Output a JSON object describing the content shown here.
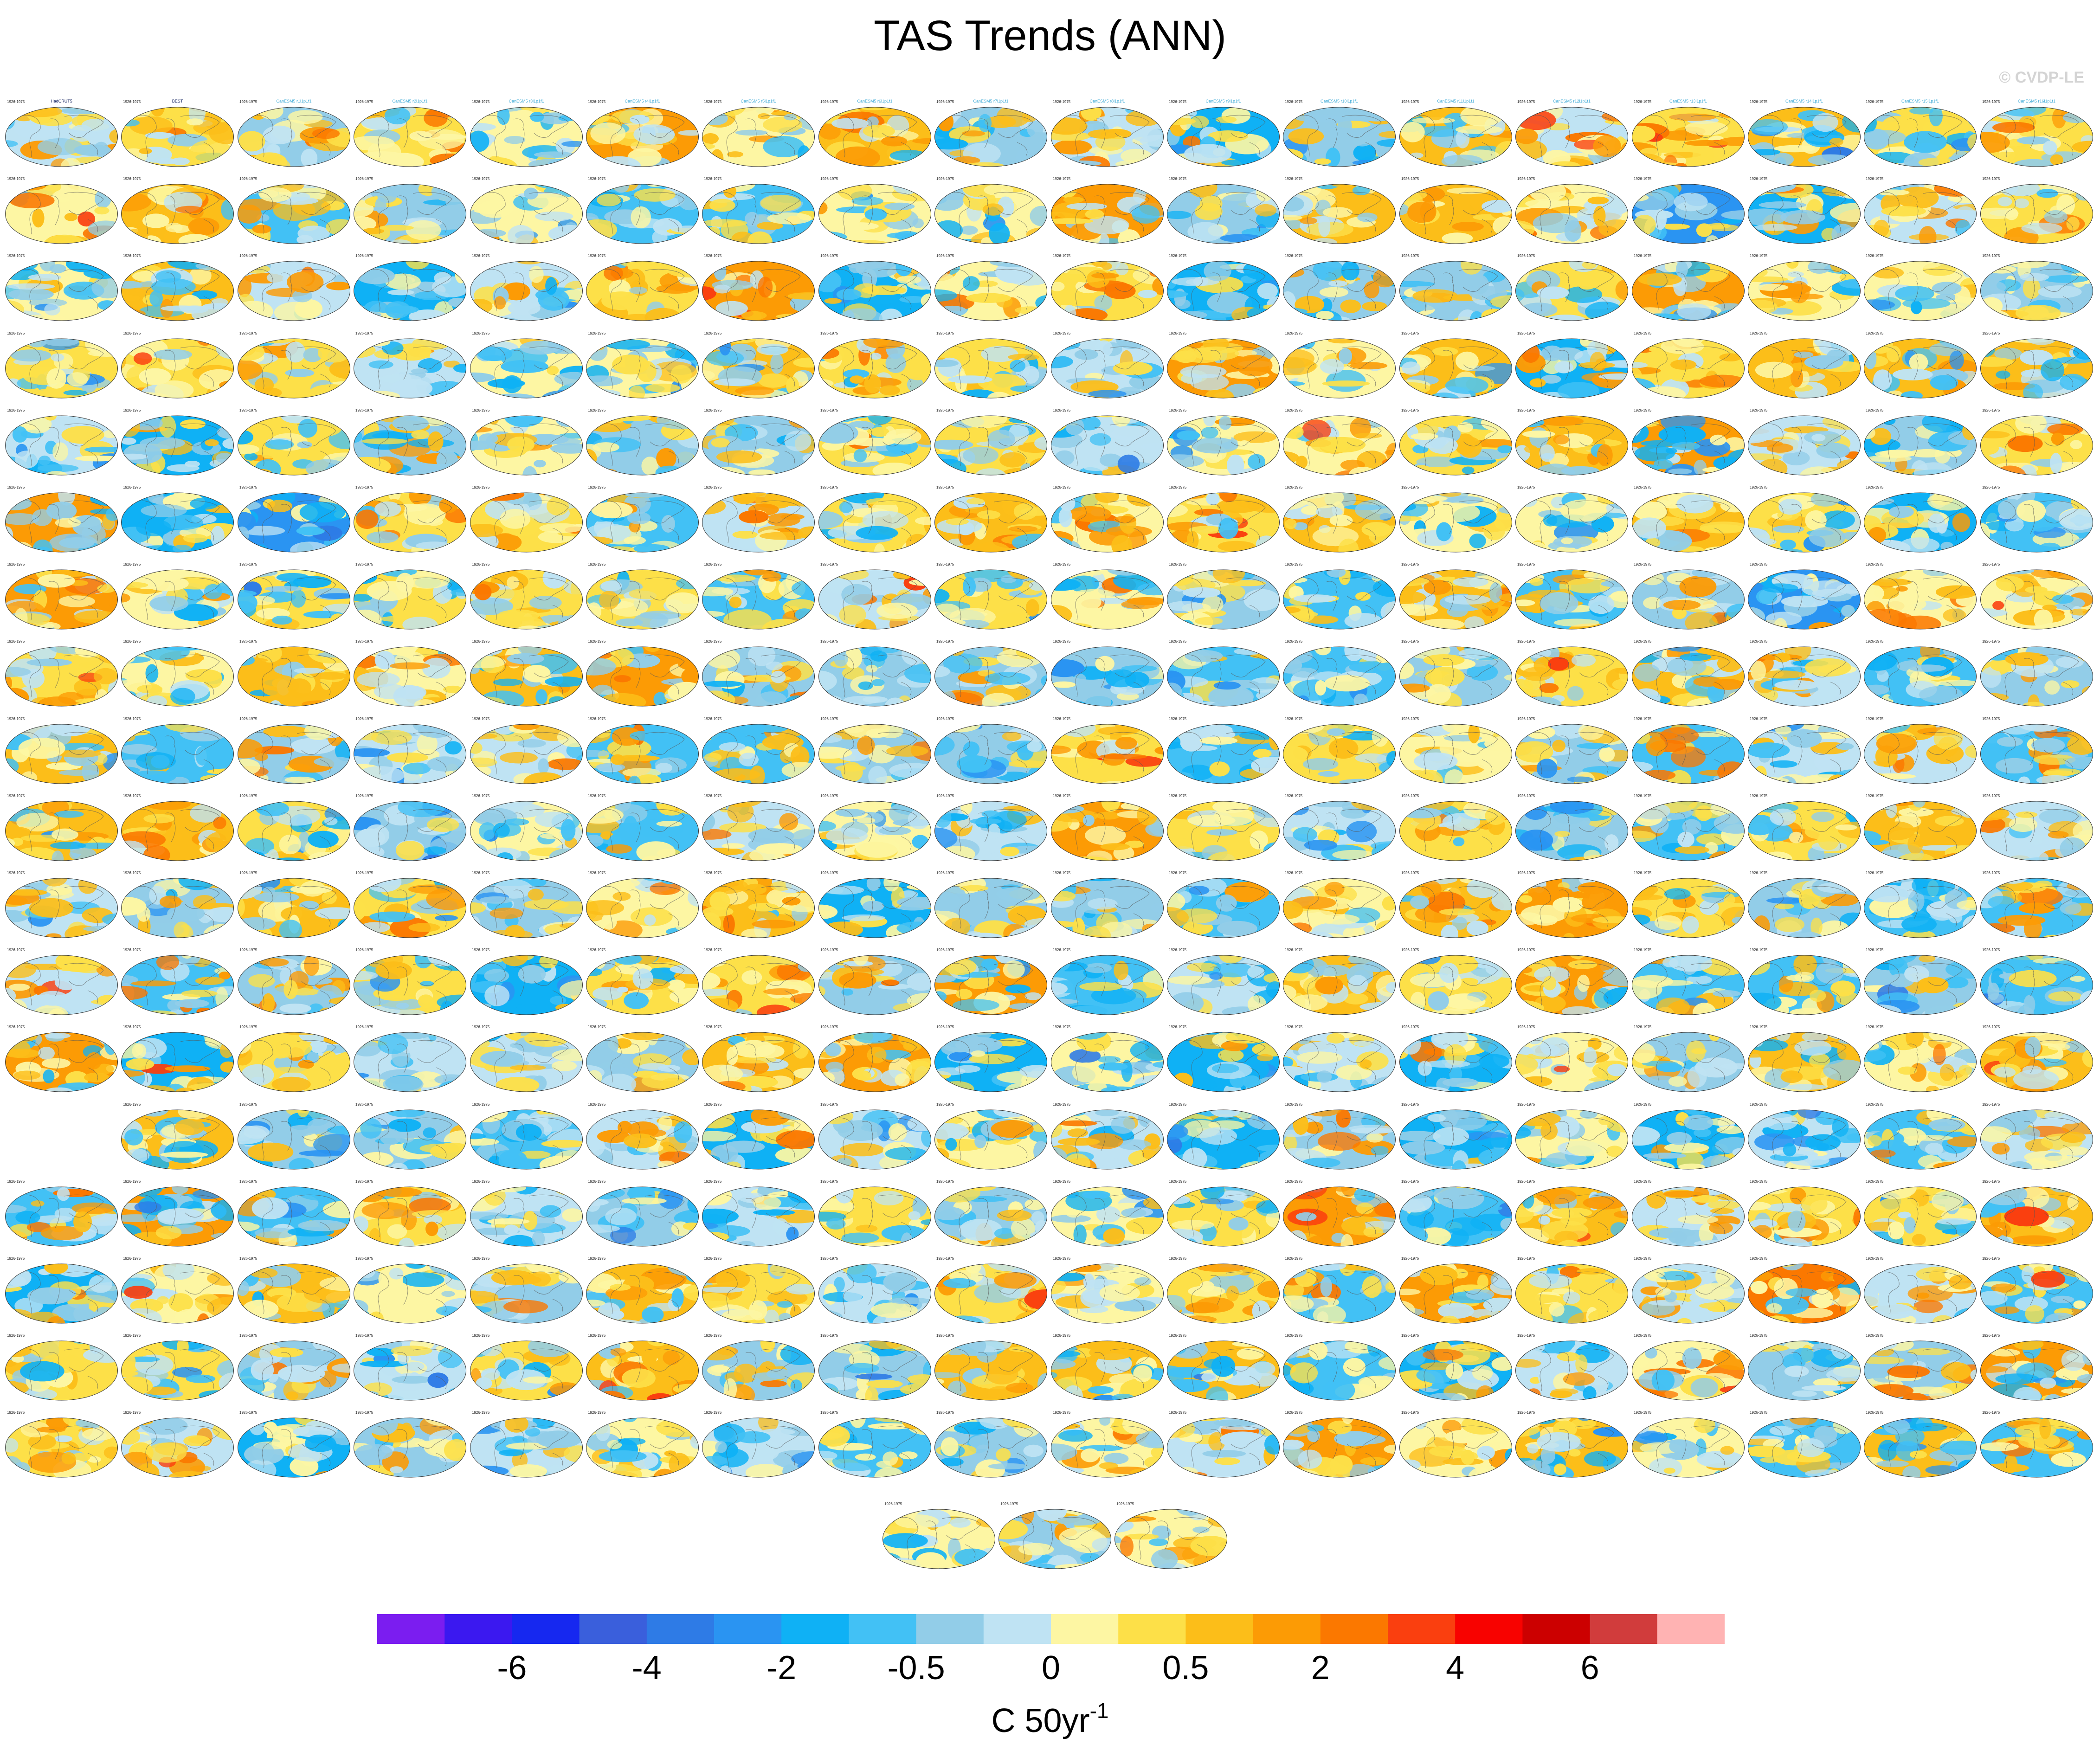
{
  "title": "TAS Trends (ANN)",
  "watermark": "© CVDP-LE",
  "chart_data": {
    "type": "heatmap",
    "title": "TAS Trends (ANN)",
    "map_projection": "Robinson global maps (panel grid)",
    "panel_period": "1926-1975",
    "panel_layout": {
      "rows": 19,
      "columns": 18,
      "row_counts": [
        18,
        18,
        18,
        18,
        18,
        18,
        18,
        18,
        18,
        18,
        18,
        18,
        18,
        17,
        18,
        18,
        18,
        18,
        3
      ],
      "row_offsets": [
        0,
        0,
        0,
        0,
        0,
        0,
        0,
        0,
        0,
        0,
        0,
        0,
        0,
        1,
        0,
        0,
        0,
        0,
        7.55
      ]
    },
    "panels": [
      {
        "name": "HadCRUT5",
        "name_color": "#0a1a5a"
      },
      {
        "name": "BEST",
        "name_color": "#0a1a5a"
      },
      {
        "name": "CanESM5 r1i1p1f1",
        "name_color": "#3da9d6"
      },
      {
        "name": "CanESM5 r2i1p1f1",
        "name_color": "#3da9d6"
      },
      {
        "name": "CanESM5 r3i1p1f1",
        "name_color": "#3da9d6"
      },
      {
        "name": "CanESM5 r4i1p1f1",
        "name_color": "#3da9d6"
      },
      {
        "name": "CanESM5 r5i1p1f1",
        "name_color": "#3da9d6"
      },
      {
        "name": "CanESM5 r6i1p1f1",
        "name_color": "#3da9d6"
      },
      {
        "name": "CanESM5 r7i1p1f1",
        "name_color": "#3da9d6"
      },
      {
        "name": "CanESM5 r8i1p1f1",
        "name_color": "#3da9d6"
      },
      {
        "name": "CanESM5 r9i1p1f1",
        "name_color": "#3da9d6"
      },
      {
        "name": "CanESM5 r10i1p1f1",
        "name_color": "#3da9d6"
      },
      {
        "name": "CanESM5 r11i1p1f1",
        "name_color": "#3da9d6"
      },
      {
        "name": "CanESM5 r12i1p1f1",
        "name_color": "#3da9d6"
      },
      {
        "name": "CanESM5 r13i1p1f1",
        "name_color": "#3da9d6"
      },
      {
        "name": "CanESM5 r14i1p1f1",
        "name_color": "#3da9d6"
      },
      {
        "name": "CanESM5 r15i1p1f1",
        "name_color": "#3da9d6"
      },
      {
        "name": "CanESM5 r16i1p1f1",
        "name_color": "#3da9d6"
      }
    ],
    "colorbar": {
      "colors": [
        "#7b1df0",
        "#3b18f0",
        "#1628f0",
        "#3a5fdc",
        "#2e7be6",
        "#2a94f2",
        "#0fb1f5",
        "#42c1f5",
        "#92cde8",
        "#bfe3f3",
        "#fdf6a3",
        "#fde048",
        "#fcbe19",
        "#fc9b05",
        "#fb7800",
        "#fa3f0f",
        "#f80200",
        "#cc0000",
        "#d13c3c",
        "#ffb3b3"
      ],
      "labels": [
        {
          "text": "-6",
          "index": 1
        },
        {
          "text": "-4",
          "index": 3
        },
        {
          "text": "-2",
          "index": 5
        },
        {
          "text": "-0.5",
          "index": 7
        },
        {
          "text": "0",
          "index": 9
        },
        {
          "text": "0.5",
          "index": 11
        },
        {
          "text": "2",
          "index": 13
        },
        {
          "text": "4",
          "index": 15
        },
        {
          "text": "6",
          "index": 17
        }
      ],
      "units": "C 50yr",
      "units_superscript": "-1"
    }
  }
}
